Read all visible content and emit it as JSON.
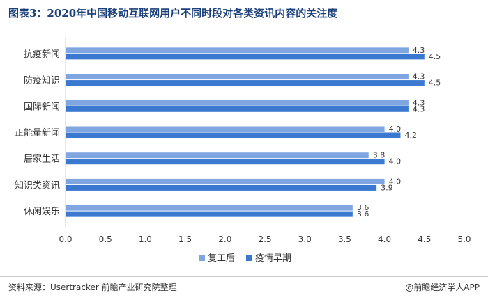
{
  "title": "图表3：2020年中国移动互联网用户不同时段对各类资讯内容的关注度",
  "source": "资料来源：Usertracker 前瞻产业研究院整理",
  "brand": "@前瞻经济学人APP",
  "colors": {
    "series1": "#7fa6e0",
    "series2": "#3b78d0",
    "title": "#1a3f7a"
  },
  "chart_data": {
    "type": "bar",
    "orientation": "horizontal",
    "categories": [
      "抗疫新闻",
      "防疫知识",
      "国际新闻",
      "正能量新闻",
      "居家生活",
      "知识类资讯",
      "休闲娱乐"
    ],
    "series": [
      {
        "name": "复工后",
        "values": [
          4.3,
          4.3,
          4.3,
          4.0,
          3.8,
          4.0,
          3.6
        ],
        "labels": [
          "4.3",
          "4.3",
          "4.3",
          "4.0",
          "3.8",
          "4.0",
          "3.6"
        ]
      },
      {
        "name": "疫情早期",
        "values": [
          4.5,
          4.5,
          4.3,
          4.2,
          4.0,
          3.9,
          3.6
        ],
        "labels": [
          "4.5",
          "4.5",
          "4.3",
          "4.2",
          "4.0",
          "3.9",
          "3.6"
        ]
      }
    ],
    "xlim": [
      0,
      5.0
    ],
    "xticks": [
      "0.0",
      "0.5",
      "1.0",
      "1.5",
      "2.0",
      "2.5",
      "3.0",
      "3.5",
      "4.0",
      "4.5",
      "5.0"
    ],
    "grid": false,
    "legend": "bottom-center"
  }
}
